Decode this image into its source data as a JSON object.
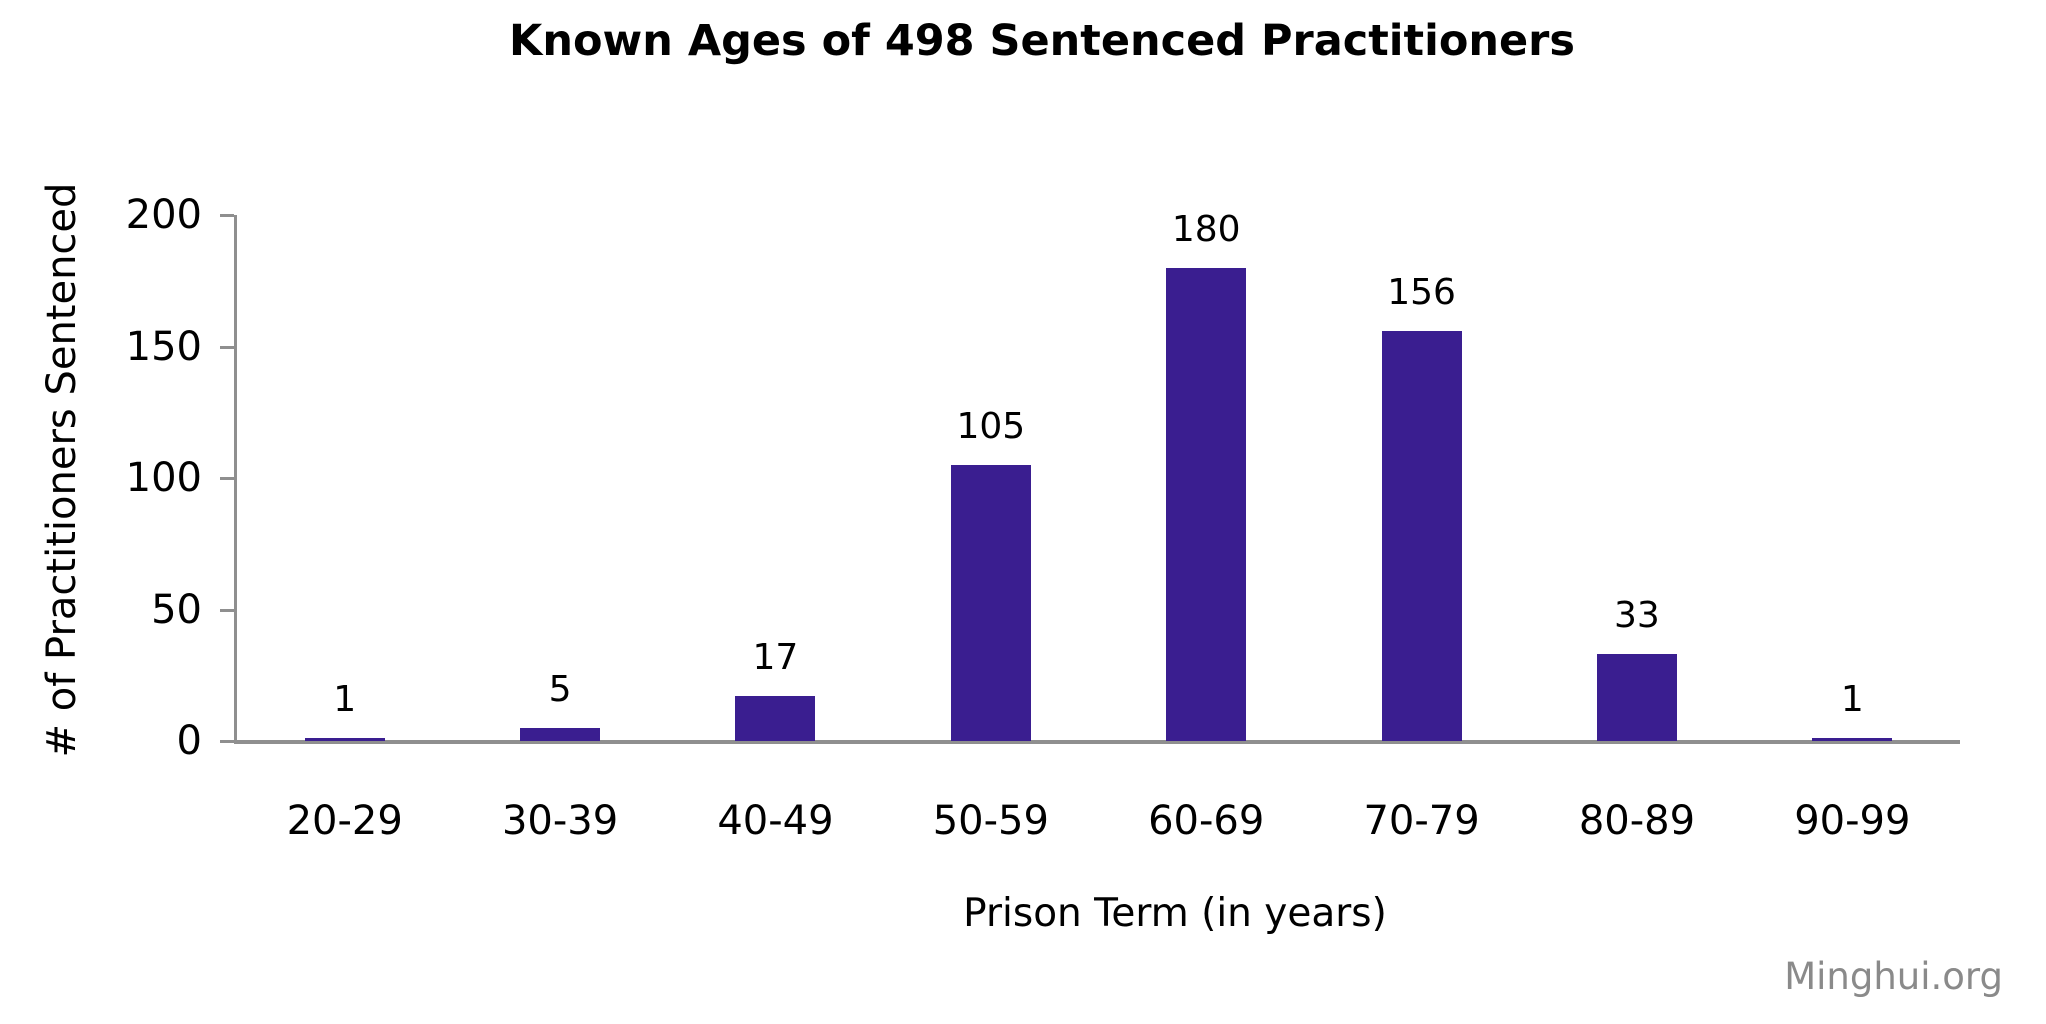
{
  "watermark": "Minghui.org",
  "colors": {
    "bar": "#3A1E90",
    "axis": "#8F8F8F",
    "text": "#000000",
    "watermark": "#8A8A8A",
    "background": "#FFFFFF"
  },
  "chart_data": {
    "type": "bar",
    "title": "Known Ages of 498 Sentenced Practitioners",
    "xlabel": "Prison Term (in years)",
    "ylabel": "# of Practitioners Sentenced",
    "categories": [
      "20-29",
      "30-39",
      "40-49",
      "50-59",
      "60-69",
      "70-79",
      "80-89",
      "90-99"
    ],
    "values": [
      1,
      5,
      17,
      105,
      180,
      156,
      33,
      1
    ],
    "total": 498,
    "ylim": [
      0,
      200
    ],
    "yticks": [
      0,
      50,
      100,
      150,
      200
    ],
    "grid": false,
    "legend_position": "none",
    "data_labels_shown": true
  }
}
